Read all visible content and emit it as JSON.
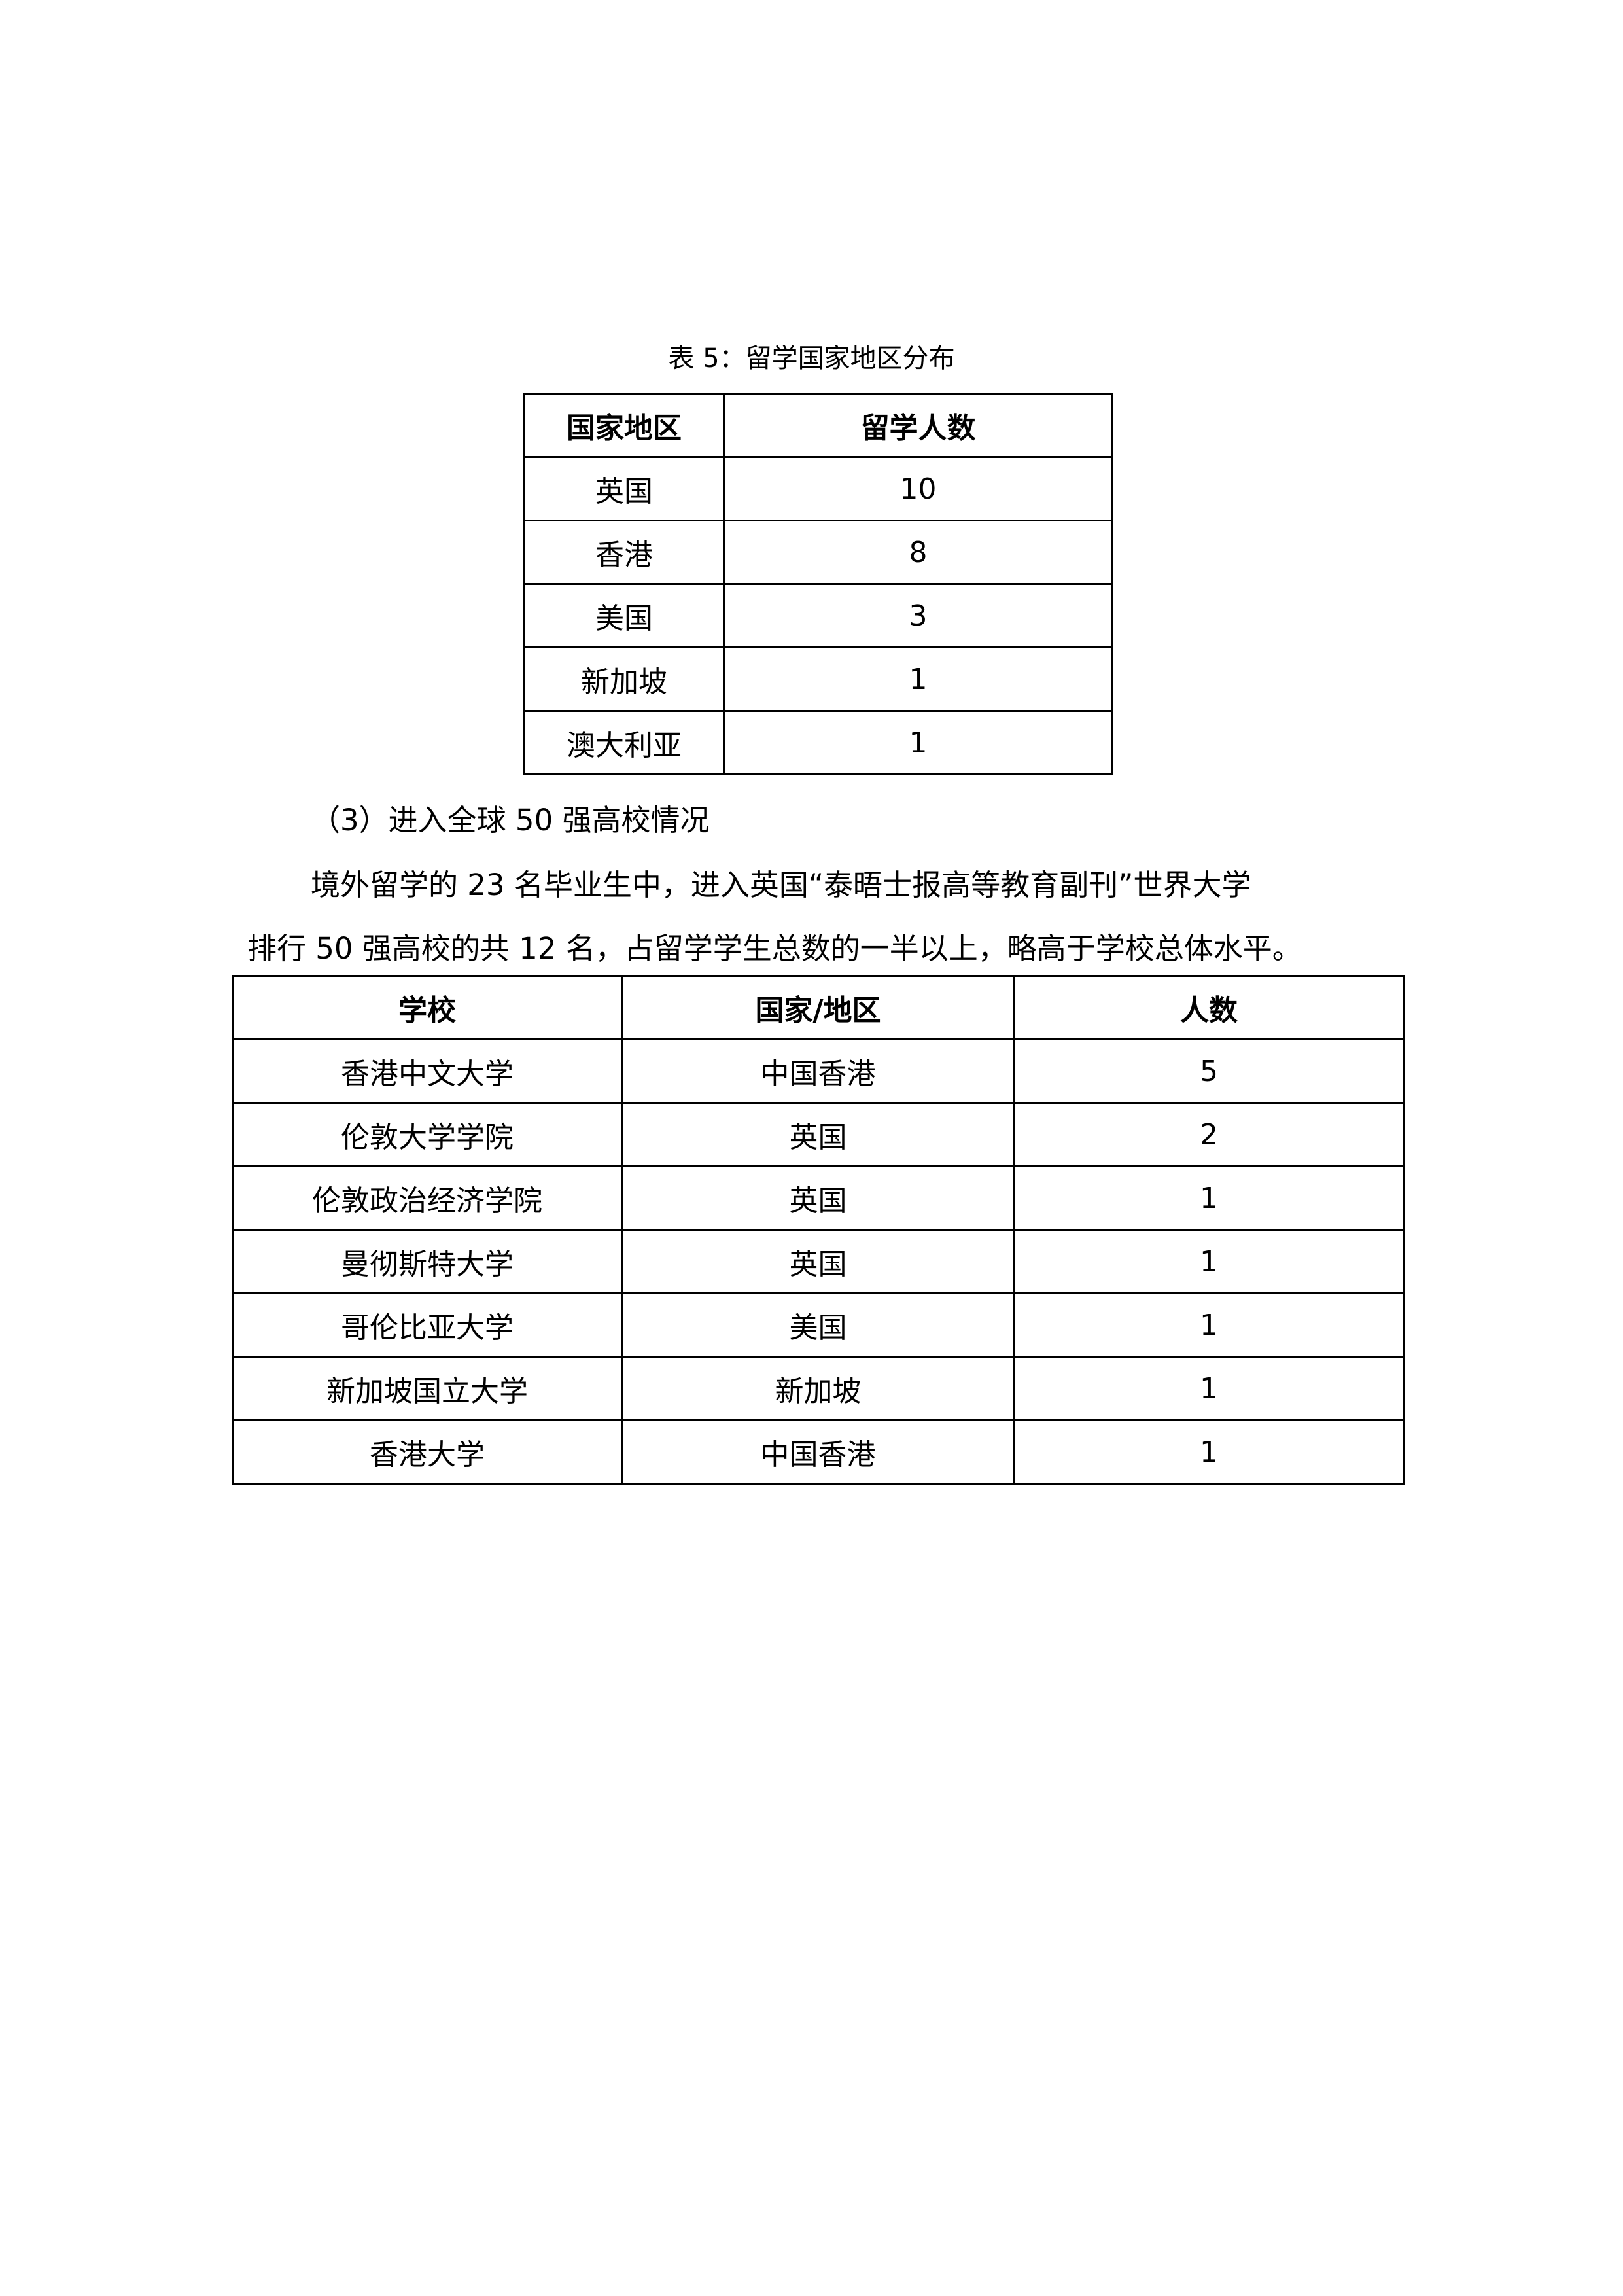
{
  "table1": {
    "caption": "表 5：留学国家地区分布",
    "headers": [
      "国家地区",
      "留学人数"
    ],
    "rows": [
      [
        "英国",
        "10"
      ],
      [
        "香港",
        "8"
      ],
      [
        "美国",
        "3"
      ],
      [
        "新加坡",
        "1"
      ],
      [
        "澳大利亚",
        "1"
      ]
    ]
  },
  "section_heading": "（3）进入全球 50 强高校情况",
  "paragraph": {
    "line1": "境外留学的 23 名毕业生中，进入英国“泰晤士报高等教育副刊”世界大学",
    "line2": "排行 50 强高校的共 12 名，占留学学生总数的一半以上，略高于学校总体水平。"
  },
  "table2": {
    "headers": [
      "学校",
      "国家/地区",
      "人数"
    ],
    "rows": [
      [
        "香港中文大学",
        "中国香港",
        "5"
      ],
      [
        "伦敦大学学院",
        "英国",
        "2"
      ],
      [
        "伦敦政治经济学院",
        "英国",
        "1"
      ],
      [
        "曼彻斯特大学",
        "英国",
        "1"
      ],
      [
        "哥伦比亚大学",
        "美国",
        "1"
      ],
      [
        "新加坡国立大学",
        "新加坡",
        "1"
      ],
      [
        "香港大学",
        "中国香港",
        "1"
      ]
    ]
  }
}
